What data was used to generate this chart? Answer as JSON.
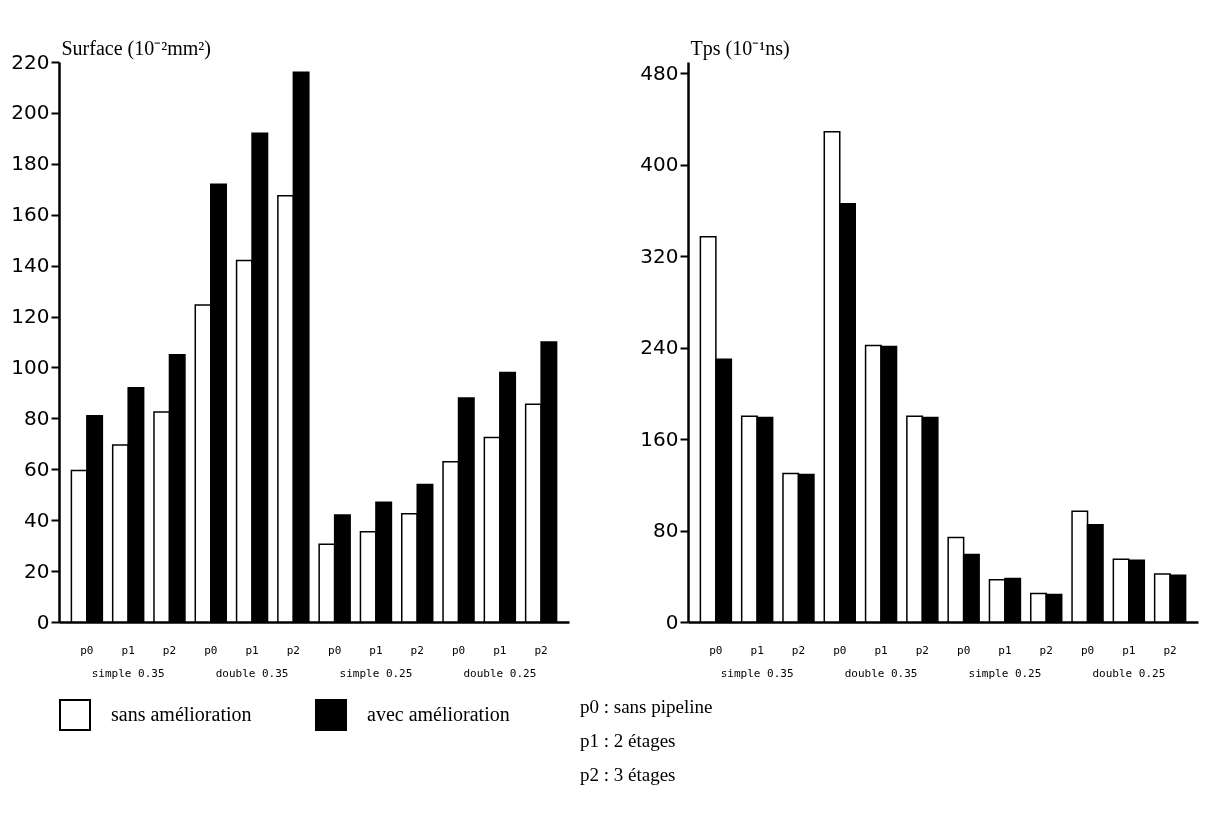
{
  "chart_data": [
    {
      "type": "bar",
      "ylabel": "Surface (10⁻²mm²)",
      "categories": [
        "p0",
        "p1",
        "p2",
        "p0",
        "p1",
        "p2",
        "p0",
        "p1",
        "p2",
        "p0",
        "p1",
        "p2"
      ],
      "series": [
        {
          "name": "sans amélioration",
          "color": "#ffffff",
          "values": [
            59.5,
            69.5,
            82.5,
            124.5,
            142,
            167.5,
            30.5,
            35.5,
            42.5,
            63,
            72.5,
            85.5
          ]
        },
        {
          "name": "avec amélioration",
          "color": "#000000",
          "values": [
            81,
            92,
            105,
            172,
            192,
            216,
            42,
            47,
            54,
            88,
            98,
            110
          ]
        }
      ],
      "ylim": [
        0,
        220
      ],
      "yticks": [
        0,
        20,
        40,
        60,
        80,
        100,
        120,
        140,
        160,
        180,
        200,
        220
      ],
      "grid": false,
      "legend": "bottom",
      "annotations": [
        "simple 0.35",
        "double 0.35",
        "simple 0.25",
        "double 0.25",
        "p0 : sans pipeline",
        "p1 : 2 étages",
        "p2 : 3 étages"
      ]
    },
    {
      "type": "bar",
      "ylabel": "Tps (10⁻¹ns)",
      "categories": [
        "p0",
        "p1",
        "p2",
        "p0",
        "p1",
        "p2",
        "p0",
        "p1",
        "p2",
        "p0",
        "p1",
        "p2"
      ],
      "series": [
        {
          "name": "sans amélioration",
          "color": "#ffffff",
          "values": [
            337,
            180,
            130,
            429,
            242,
            180,
            74,
            37,
            25,
            97,
            55,
            42
          ]
        },
        {
          "name": "avec amélioration",
          "color": "#000000",
          "values": [
            230,
            179,
            129,
            366,
            241,
            179,
            59,
            38,
            24,
            85,
            54,
            41
          ]
        }
      ],
      "ylim": [
        0,
        490
      ],
      "yticks": [
        0,
        80,
        160,
        240,
        320,
        400,
        480
      ],
      "grid": false,
      "legend": "bottom",
      "annotations": [
        "simple 0.35",
        "double 0.35",
        "simple 0.25",
        "double 0.25"
      ]
    }
  ]
}
